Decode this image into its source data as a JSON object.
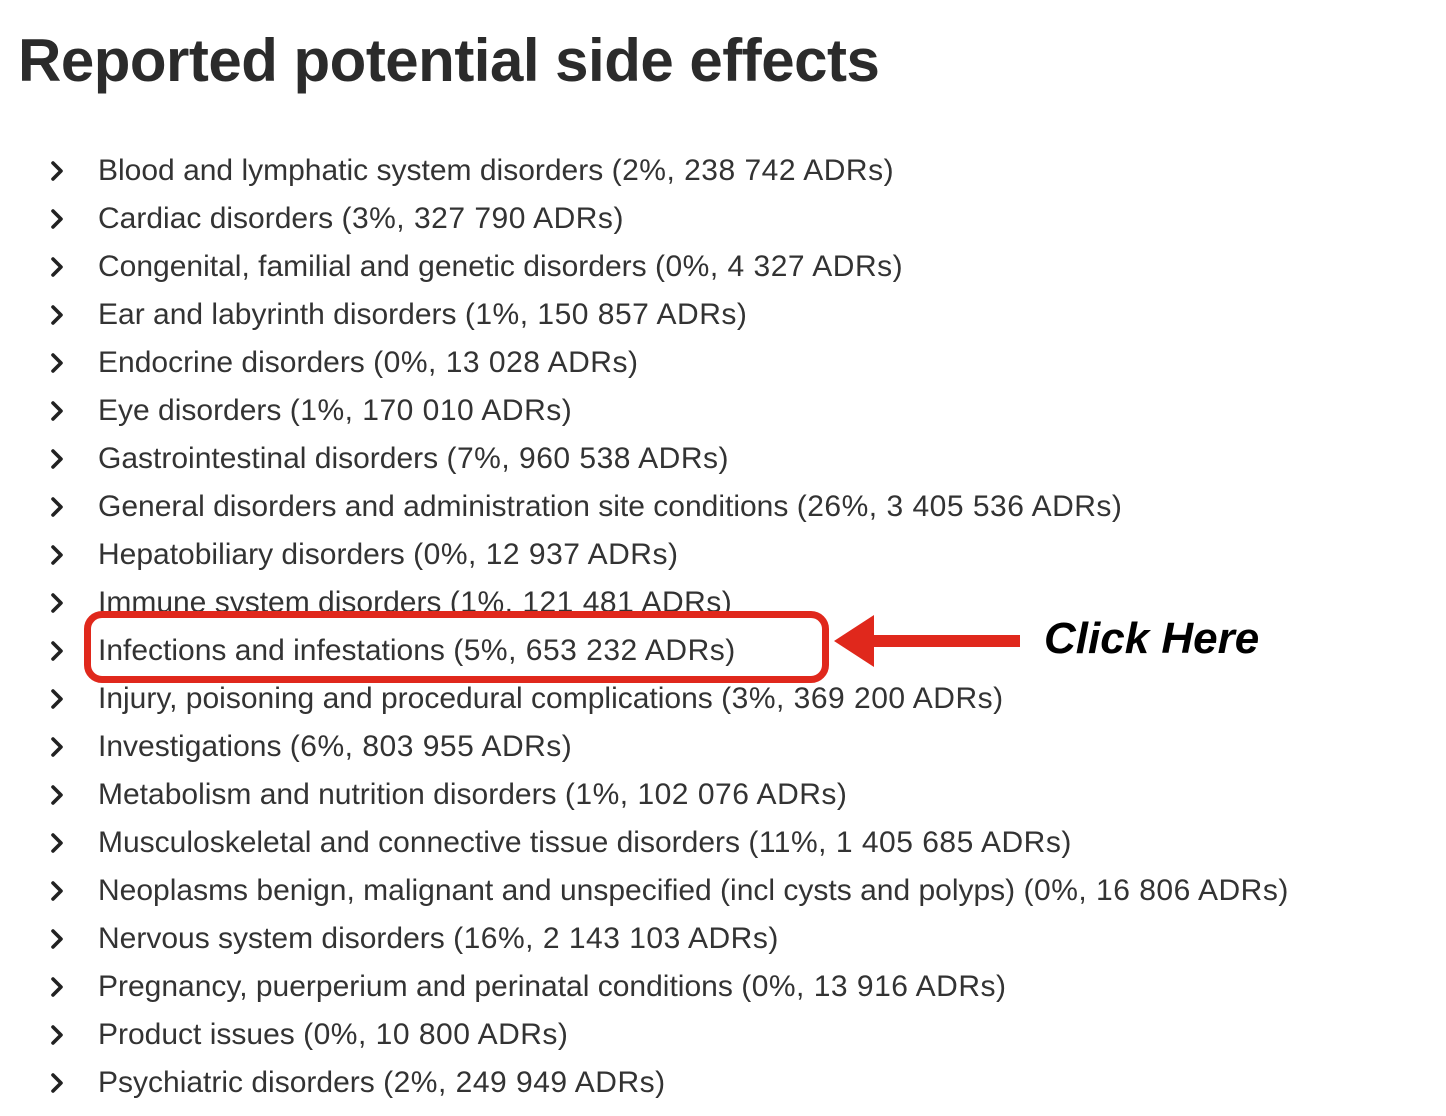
{
  "page": {
    "title": "Reported potential side effects"
  },
  "accent": {
    "highlight_color": "#e0281c",
    "chevron_icon": "chevron-right-icon"
  },
  "annotation": {
    "callout": "Click Here"
  },
  "side_effects": [
    {
      "name": "Blood and lymphatic system disorders",
      "percent": "2%",
      "adrs": "238 742 ADRs"
    },
    {
      "name": "Cardiac disorders",
      "percent": "3%",
      "adrs": "327 790 ADRs"
    },
    {
      "name": "Congenital, familial and genetic disorders",
      "percent": "0%",
      "adrs": "4 327 ADRs"
    },
    {
      "name": "Ear and labyrinth disorders",
      "percent": "1%",
      "adrs": "150 857 ADRs"
    },
    {
      "name": "Endocrine disorders",
      "percent": "0%",
      "adrs": "13 028 ADRs"
    },
    {
      "name": "Eye disorders",
      "percent": "1%",
      "adrs": "170 010 ADRs"
    },
    {
      "name": "Gastrointestinal disorders",
      "percent": "7%",
      "adrs": "960 538 ADRs"
    },
    {
      "name": "General disorders and administration site conditions",
      "percent": "26%",
      "adrs": "3 405 536 ADRs"
    },
    {
      "name": "Hepatobiliary disorders",
      "percent": "0%",
      "adrs": "12 937 ADRs"
    },
    {
      "name": "Immune system disorders",
      "percent": "1%",
      "adrs": "121 481 ADRs"
    },
    {
      "name": "Infections and infestations",
      "percent": "5%",
      "adrs": "653 232 ADRs"
    },
    {
      "name": "Injury, poisoning and procedural complications",
      "percent": "3%",
      "adrs": "369 200 ADRs"
    },
    {
      "name": "Investigations",
      "percent": "6%",
      "adrs": "803 955 ADRs"
    },
    {
      "name": "Metabolism and nutrition disorders",
      "percent": "1%",
      "adrs": "102 076 ADRs"
    },
    {
      "name": "Musculoskeletal and connective tissue disorders",
      "percent": "11%",
      "adrs": "1 405 685 ADRs"
    },
    {
      "name": "Neoplasms benign, malignant and unspecified (incl cysts and polyps)",
      "percent": "0%",
      "adrs": "16 806 ADRs"
    },
    {
      "name": "Nervous system disorders",
      "percent": "16%",
      "adrs": "2 143 103 ADRs"
    },
    {
      "name": "Pregnancy, puerperium and perinatal conditions",
      "percent": "0%",
      "adrs": "13 916 ADRs"
    },
    {
      "name": "Product issues",
      "percent": "0%",
      "adrs": "10 800 ADRs"
    },
    {
      "name": "Psychiatric disorders",
      "percent": "2%",
      "adrs": "249 949 ADRs"
    }
  ]
}
